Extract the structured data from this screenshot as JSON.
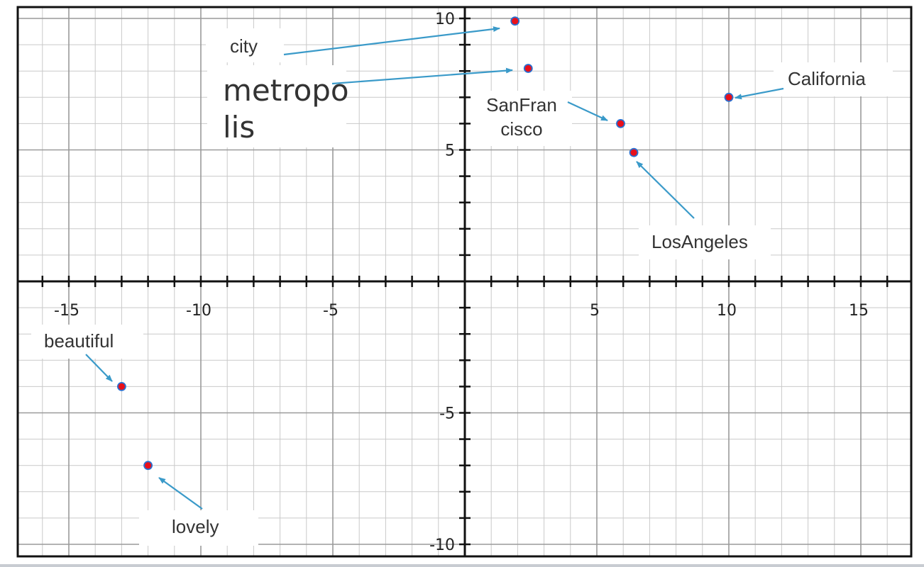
{
  "chart_data": {
    "type": "scatter",
    "title": "",
    "xlabel": "",
    "ylabel": "",
    "xlim": [
      -17,
      17
    ],
    "ylim": [
      -10.5,
      10.5
    ],
    "grid": true,
    "x_ticks": [
      -15,
      -10,
      -5,
      5,
      10,
      15
    ],
    "y_ticks": [
      10,
      5,
      -5,
      -10
    ],
    "colors": {
      "point_fill": "#e8101a",
      "point_stroke": "#2a6fd0",
      "arrow": "#3a9ac9",
      "grid_major": "#9a9a9a",
      "grid_minor": "#c9c9c9",
      "axis": "#111111"
    },
    "points": [
      {
        "label": "city",
        "x": 1.9,
        "y": 9.9
      },
      {
        "label": "metropolis",
        "x": 2.4,
        "y": 8.1
      },
      {
        "label": "SanFrancisco",
        "x": 5.9,
        "y": 6.0
      },
      {
        "label": "LosAngeles",
        "x": 6.4,
        "y": 4.9
      },
      {
        "label": "California",
        "x": 10.0,
        "y": 7.0
      },
      {
        "label": "beautiful",
        "x": -13.0,
        "y": -4.0
      },
      {
        "label": "lovely",
        "x": -12.0,
        "y": -7.0
      }
    ],
    "annotations": [
      {
        "id": "city",
        "lines": [
          "city"
        ],
        "style": "normal"
      },
      {
        "id": "metropolis",
        "lines": [
          "metropo",
          "lis"
        ],
        "style": "big"
      },
      {
        "id": "sanfrancisco",
        "lines": [
          "SanFran",
          "cisco"
        ],
        "style": "normal"
      },
      {
        "id": "losangeles",
        "lines": [
          "LosAngeles"
        ],
        "style": "normal"
      },
      {
        "id": "california",
        "lines": [
          "California"
        ],
        "style": "normal"
      },
      {
        "id": "beautiful",
        "lines": [
          "beautiful"
        ],
        "style": "normal"
      },
      {
        "id": "lovely",
        "lines": [
          "lovely"
        ],
        "style": "normal"
      }
    ]
  }
}
